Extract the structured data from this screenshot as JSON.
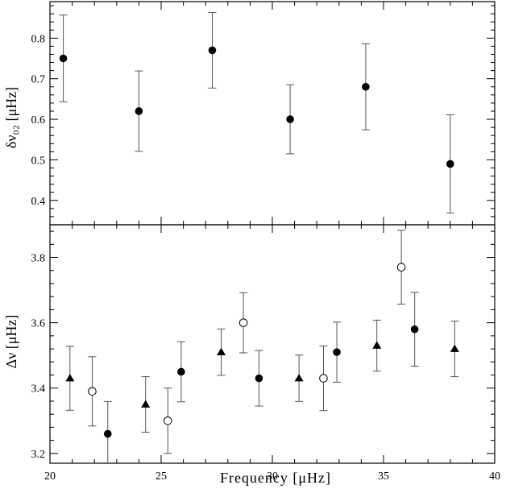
{
  "chart_data": [
    {
      "type": "scatter",
      "panel": "top",
      "xlabel": "",
      "ylabel": "δν₀₂ [μHz]",
      "xlim": [
        20,
        40
      ],
      "ylim": [
        0.34,
        0.89
      ],
      "xticks": [
        20,
        25,
        30,
        35,
        40
      ],
      "yticks": [
        0.4,
        0.5,
        0.6,
        0.7,
        0.8
      ],
      "ytick_labels": [
        "0.4",
        "0.5",
        "0.6",
        "0.7",
        "0.8"
      ],
      "series": [
        {
          "marker": "filled-circle",
          "points": [
            {
              "x": 20.6,
              "y": 0.75,
              "err": 0.107
            },
            {
              "x": 24.0,
              "y": 0.62,
              "err": 0.099
            },
            {
              "x": 27.3,
              "y": 0.77,
              "err": 0.093
            },
            {
              "x": 30.8,
              "y": 0.6,
              "err": 0.085
            },
            {
              "x": 34.2,
              "y": 0.68,
              "err": 0.106
            },
            {
              "x": 38.0,
              "y": 0.49,
              "err": 0.121
            }
          ]
        }
      ]
    },
    {
      "type": "scatter",
      "panel": "bottom",
      "xlabel": "Frequency [μHz]",
      "ylabel": "Δν [μHz]",
      "xlim": [
        20,
        40
      ],
      "ylim": [
        3.17,
        3.9
      ],
      "xticks": [
        20,
        25,
        30,
        35,
        40
      ],
      "xtick_labels": [
        "20",
        "25",
        "30",
        "35",
        "40"
      ],
      "yticks": [
        3.2,
        3.4,
        3.6,
        3.8
      ],
      "ytick_labels": [
        "3.2",
        "3.4",
        "3.6",
        "3.8"
      ],
      "series": [
        {
          "marker": "filled-triangle",
          "points": [
            {
              "x": 20.9,
              "y": 3.43,
              "err": 0.098
            },
            {
              "x": 24.3,
              "y": 3.35,
              "err": 0.085
            },
            {
              "x": 27.7,
              "y": 3.51,
              "err": 0.071
            },
            {
              "x": 31.2,
              "y": 3.43,
              "err": 0.071
            },
            {
              "x": 34.7,
              "y": 3.53,
              "err": 0.078
            },
            {
              "x": 38.2,
              "y": 3.52,
              "err": 0.085
            }
          ]
        },
        {
          "marker": "open-circle",
          "points": [
            {
              "x": 21.9,
              "y": 3.39,
              "err": 0.106
            },
            {
              "x": 25.3,
              "y": 3.3,
              "err": 0.1
            },
            {
              "x": 28.7,
              "y": 3.6,
              "err": 0.092
            },
            {
              "x": 32.3,
              "y": 3.43,
              "err": 0.099
            },
            {
              "x": 35.8,
              "y": 3.77,
              "err": 0.113
            }
          ]
        },
        {
          "marker": "filled-circle",
          "points": [
            {
              "x": 22.6,
              "y": 3.26,
              "err": 0.099
            },
            {
              "x": 25.9,
              "y": 3.45,
              "err": 0.092
            },
            {
              "x": 29.4,
              "y": 3.43,
              "err": 0.085
            },
            {
              "x": 32.9,
              "y": 3.51,
              "err": 0.092
            },
            {
              "x": 36.4,
              "y": 3.58,
              "err": 0.113
            }
          ]
        }
      ]
    }
  ]
}
